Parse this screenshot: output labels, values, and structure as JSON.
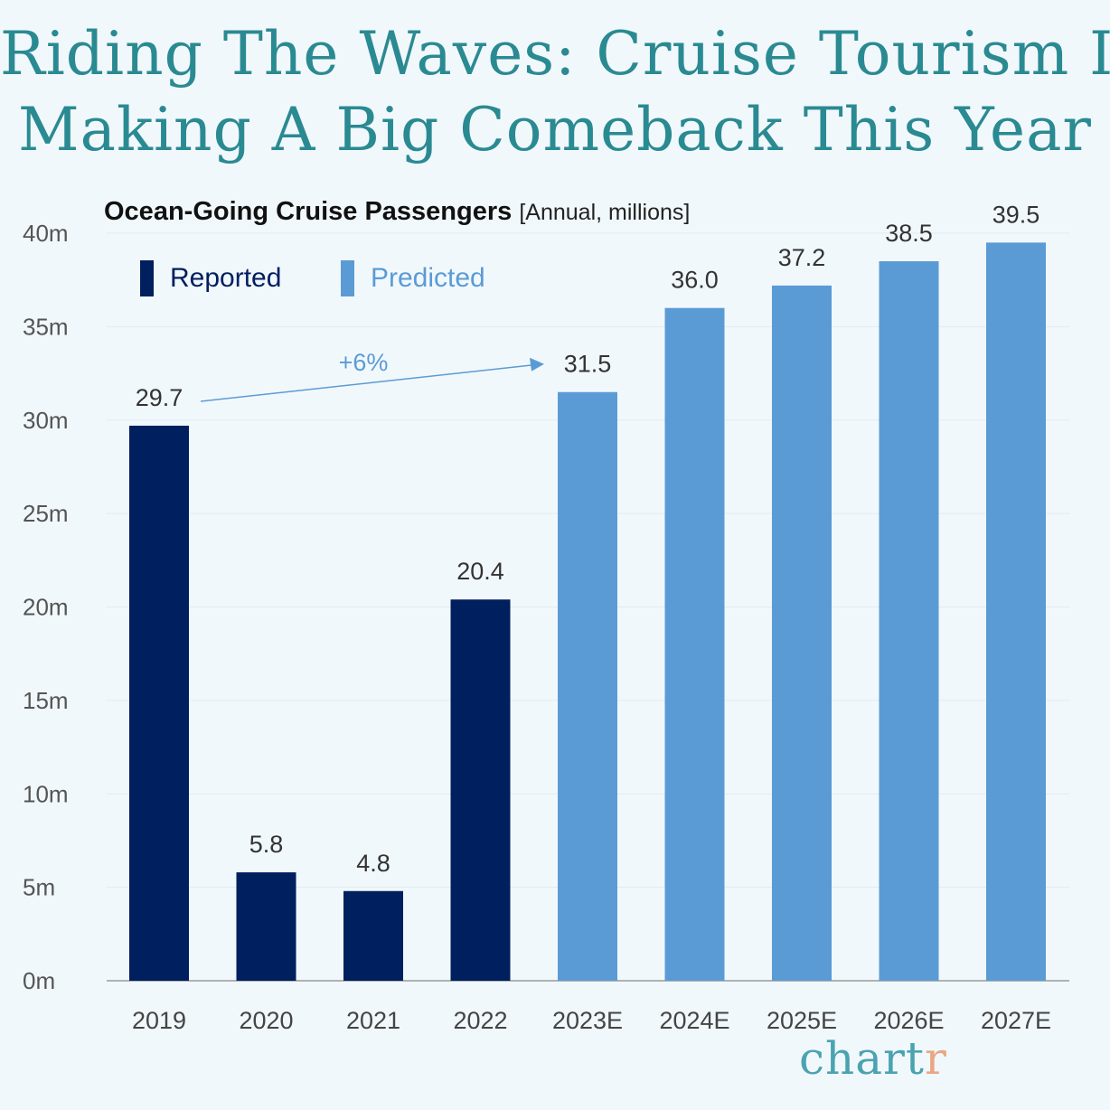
{
  "title_lines": [
    "Riding The Waves: Cruise Tourism Is",
    "Making A Big Comeback This Year"
  ],
  "subtitle": {
    "main": "Ocean-Going Cruise Passengers",
    "unit": "[Annual, millions]"
  },
  "legend": [
    {
      "label": "Reported",
      "color": "#001f5f"
    },
    {
      "label": "Predicted",
      "color": "#5b9bd5"
    }
  ],
  "colors": {
    "reported": "#001f5f",
    "predicted": "#5b9bd5",
    "title": "#2a8a92",
    "background": "#f1f8fc"
  },
  "chart_data": {
    "type": "bar",
    "categories": [
      "2019",
      "2020",
      "2021",
      "2022",
      "2023E",
      "2024E",
      "2025E",
      "2026E",
      "2027E"
    ],
    "values": [
      29.7,
      5.8,
      4.8,
      20.4,
      31.5,
      36.0,
      37.2,
      38.5,
      39.5
    ],
    "value_labels": [
      "29.7",
      "5.8",
      "4.8",
      "20.4",
      "31.5",
      "36.0",
      "37.2",
      "38.5",
      "39.5"
    ],
    "status": [
      "Reported",
      "Reported",
      "Reported",
      "Reported",
      "Predicted",
      "Predicted",
      "Predicted",
      "Predicted",
      "Predicted"
    ],
    "ylim": [
      0,
      40
    ],
    "yticks": [
      0,
      5,
      10,
      15,
      20,
      25,
      30,
      35,
      40
    ],
    "ytick_labels": [
      "0m",
      "5m",
      "10m",
      "15m",
      "20m",
      "25m",
      "30m",
      "35m",
      "40m"
    ],
    "grid": true,
    "legend_position": "top-left",
    "annotation": {
      "text": "+6%",
      "from": "2019",
      "to": "2023E"
    }
  },
  "brand": {
    "main": "chart",
    "accent": "r"
  }
}
